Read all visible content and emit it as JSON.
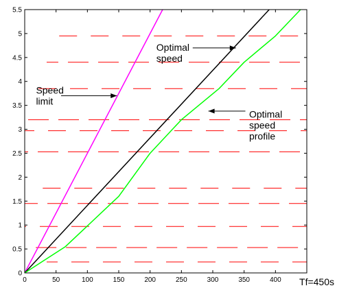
{
  "chart_data": {
    "type": "line",
    "xlim": [
      0,
      450
    ],
    "ylim": [
      0,
      5.5
    ],
    "x_ticks": [
      0,
      50,
      100,
      150,
      200,
      250,
      300,
      350,
      400
    ],
    "y_ticks": [
      0,
      0.5,
      1,
      1.5,
      2,
      2.5,
      3,
      3.5,
      4,
      4.5,
      5,
      5.5
    ],
    "grid": false,
    "corner_label": "Tf=450s",
    "series": [
      {
        "key": "speed_limit",
        "color": "#ff00ff",
        "x": [
          0,
          220
        ],
        "y": [
          0,
          5.5
        ]
      },
      {
        "key": "optimal_speed",
        "color": "#000000",
        "x": [
          0,
          390
        ],
        "y": [
          0,
          5.5
        ]
      },
      {
        "key": "optimal_speed_profile",
        "color": "#00ff00",
        "x": [
          0,
          65,
          150,
          200,
          250,
          310,
          350,
          400,
          440
        ],
        "y": [
          0,
          0.55,
          1.6,
          2.5,
          3.2,
          3.85,
          4.4,
          4.95,
          5.5
        ]
      }
    ],
    "annotations": [
      {
        "lines": [
          "Speed",
          "limit"
        ],
        "text_x": 18,
        "text_y": 3.8,
        "arrow_from": [
          58,
          3.7
        ],
        "arrow_to": [
          147,
          3.7
        ]
      },
      {
        "lines": [
          "Optimal",
          "speed"
        ],
        "text_x": 210,
        "text_y": 4.7,
        "arrow_from": [
          268,
          4.7
        ],
        "arrow_to": [
          337,
          4.7
        ]
      },
      {
        "lines": [
          "Optimal",
          "speed",
          "profile"
        ],
        "text_x": 358,
        "text_y": 3.3,
        "arrow_from": [
          352,
          3.38
        ],
        "arrow_to": [
          293,
          3.38
        ]
      }
    ],
    "dashed_bands": [
      {
        "y": 4.95,
        "x_from": 55,
        "x_to": 450
      },
      {
        "y": 4.4,
        "x_from": 35,
        "x_to": 450
      },
      {
        "y": 3.85,
        "x_from": 0,
        "x_to": 450
      },
      {
        "y": 3.2,
        "x_from": 0,
        "x_to": 450
      },
      {
        "y": 2.97,
        "x_from": 0,
        "x_to": 450
      },
      {
        "y": 2.53,
        "x_from": 0,
        "x_to": 450
      },
      {
        "y": 1.77,
        "x_from": 20,
        "x_to": 450
      },
      {
        "y": 1.45,
        "x_from": 0,
        "x_to": 450
      },
      {
        "y": 0.97,
        "x_from": 0,
        "x_to": 450
      },
      {
        "y": 0.53,
        "x_from": 10,
        "x_to": 450
      },
      {
        "y": 0.23,
        "x_from": 35,
        "x_to": 450
      }
    ],
    "band_color": "#ff0000"
  }
}
